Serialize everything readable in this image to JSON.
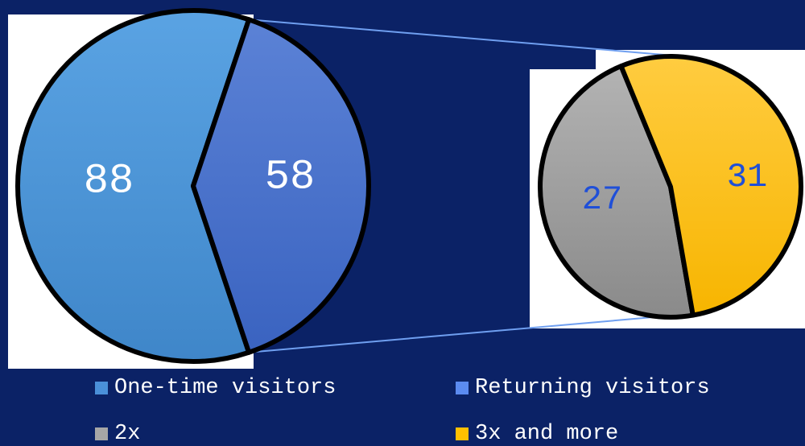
{
  "chart_data": {
    "type": "pie",
    "main_pie": {
      "slices": [
        {
          "label": "One-time visitors",
          "value": 88,
          "color": "#4a8fd0"
        },
        {
          "label": "Returning visitors",
          "value": 58,
          "color": "#4a72c8"
        }
      ]
    },
    "sub_pie": {
      "slices": [
        {
          "label": "2x",
          "value": 27,
          "color": "#9a9a9a"
        },
        {
          "label": "3x and more",
          "value": 31,
          "color": "#ffc000"
        }
      ]
    },
    "legend": [
      {
        "label": "One-time visitors",
        "color": "#4a90d9"
      },
      {
        "label": "Returning visitors",
        "color": "#5b8bf0"
      },
      {
        "label": "2x",
        "color": "#a6a6a6"
      },
      {
        "label": "3x and more",
        "color": "#ffc000"
      }
    ],
    "legend_position": "bottom"
  },
  "colors": {
    "background": "#0b2266",
    "connector": "#6f9ff0",
    "main_label": "#ffffff",
    "sub_label": "#1f4fd8"
  }
}
